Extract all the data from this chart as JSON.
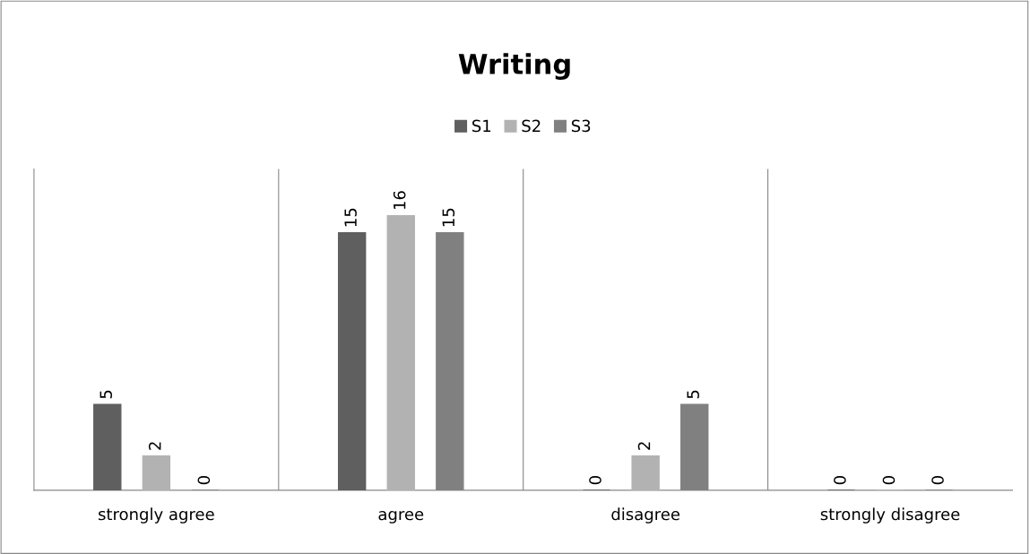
{
  "chart_data": {
    "type": "bar",
    "title": "Writing",
    "categories": [
      "strongly agree",
      "agree",
      "disagree",
      "strongly disagree"
    ],
    "series": [
      {
        "name": "S1",
        "color": "#5f5f5f",
        "values": [
          5,
          15,
          0,
          0
        ]
      },
      {
        "name": "S2",
        "color": "#b2b2b2",
        "values": [
          2,
          16,
          2,
          0
        ]
      },
      {
        "name": "S3",
        "color": "#808080",
        "values": [
          0,
          15,
          5,
          0
        ]
      }
    ],
    "data_labels": true,
    "grid": "x",
    "legend": "top",
    "tick_labels": "x"
  }
}
